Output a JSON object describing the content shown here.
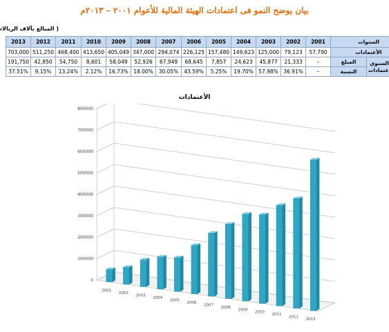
{
  "page_title": "بيان يوضح النمو فى اعتمادات الهيئة المالية للأعوام ٢٠٠١ – ٢٠١٣م",
  "table": {
    "unit_note": "( المبالغ بآلاف الريالات )",
    "header_label": "السنوات",
    "years": [
      "2013",
      "2012",
      "2011",
      "2010",
      "2009",
      "2008",
      "2007",
      "2006",
      "2005",
      "2004",
      "2003",
      "2002",
      "2001"
    ],
    "rows": [
      {
        "label": "الأعتمادات",
        "values": [
          "703,000",
          "511,250",
          "468,400",
          "413,650",
          "405,049",
          "347,000",
          "294,074",
          "226,125",
          "157,480",
          "149,623",
          "125,000",
          "79,123",
          "57,790"
        ]
      },
      {
        "group_label": "النمو السنوي في الاعتمادات",
        "label": "المبلغ",
        "values": [
          "191,750",
          "42,850",
          "54,750",
          "8,601",
          "58,049",
          "52,926",
          "67,949",
          "68,645",
          "7,857",
          "24,623",
          "45,877",
          "21,333",
          "–"
        ]
      },
      {
        "label": "النسبة",
        "values": [
          "37.51%",
          "9.15%",
          "13.24%",
          "2.12%",
          "16.73%",
          "18.00%",
          "30.05%",
          "43.59%",
          "5.25%",
          "19.70%",
          "57.98%",
          "36.91%",
          "–"
        ]
      }
    ]
  },
  "chart_data": {
    "type": "bar",
    "title": "الأعتمادات",
    "categories": [
      "2001",
      "2002",
      "2003",
      "2004",
      "2005",
      "2006",
      "2007",
      "2008",
      "2009",
      "2010",
      "2011",
      "2012",
      "2013"
    ],
    "values": [
      57790,
      79123,
      125000,
      149623,
      157480,
      226125,
      294074,
      347000,
      405049,
      413650,
      468400,
      511250,
      703000
    ],
    "ylim": [
      0,
      800000
    ],
    "yticks": [
      0,
      100000,
      200000,
      300000,
      400000,
      500000,
      600000,
      700000,
      800000
    ],
    "ytick_labels": [
      "0",
      "100000",
      "200000",
      "300000",
      "400000",
      "500000",
      "600000",
      "700000",
      "800000"
    ],
    "grid": true,
    "legend": "none",
    "bar_color": "#31a6c4",
    "bar_top_color": "#7fd3e8"
  }
}
